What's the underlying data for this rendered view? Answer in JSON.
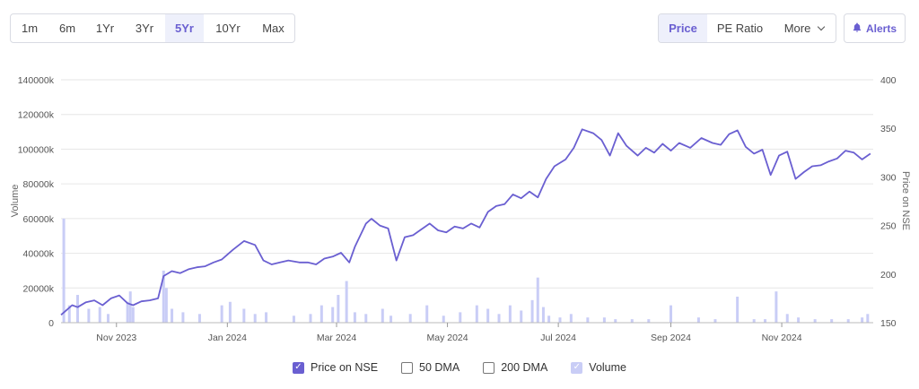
{
  "toolbar": {
    "ranges": [
      {
        "label": "1m",
        "active": false
      },
      {
        "label": "6m",
        "active": false
      },
      {
        "label": "1Yr",
        "active": false
      },
      {
        "label": "3Yr",
        "active": false
      },
      {
        "label": "5Yr",
        "active": true
      },
      {
        "label": "10Yr",
        "active": false
      },
      {
        "label": "Max",
        "active": false
      }
    ],
    "metrics": [
      {
        "label": "Price",
        "active": true
      },
      {
        "label": "PE Ratio",
        "active": false
      },
      {
        "label": "More",
        "active": false
      }
    ],
    "alerts_label": "Alerts",
    "alerts_icon": "bell-icon"
  },
  "colors": {
    "accent": "#6a5fd1",
    "volume": "#c9cdf6",
    "grid": "#e6e6e6"
  },
  "legend": [
    {
      "label": "Price on NSE",
      "checked": true,
      "style": "on"
    },
    {
      "label": "50 DMA",
      "checked": false,
      "style": "off"
    },
    {
      "label": "200 DMA",
      "checked": false,
      "style": "off"
    },
    {
      "label": "Volume",
      "checked": true,
      "style": "vol"
    }
  ],
  "chart_data": {
    "type": "line",
    "ylabel_left": "Volume",
    "ylabel_right": "Price on NSE",
    "left_ticks": [
      "0",
      "20000k",
      "40000k",
      "60000k",
      "80000k",
      "100000k",
      "120000k",
      "140000k"
    ],
    "right_ticks": [
      "150",
      "200",
      "250",
      "300",
      "350",
      "400"
    ],
    "left_ylim": [
      0,
      140000
    ],
    "right_ylim": [
      150,
      400
    ],
    "x_ticks": [
      {
        "label": "Nov 2023",
        "t": 1.0
      },
      {
        "label": "Jan 2024",
        "t": 3.0
      },
      {
        "label": "Mar 2024",
        "t": 4.97
      },
      {
        "label": "May 2024",
        "t": 6.97
      },
      {
        "label": "Jul 2024",
        "t": 8.97
      },
      {
        "label": "Sep 2024",
        "t": 11.0
      },
      {
        "label": "Nov 2024",
        "t": 13.0
      }
    ],
    "x_range": [
      0,
      14.65
    ],
    "price_series": {
      "name": "Price on NSE",
      "t": [
        0,
        0.1,
        0.2,
        0.3,
        0.45,
        0.6,
        0.75,
        0.9,
        1.05,
        1.2,
        1.3,
        1.45,
        1.6,
        1.75,
        1.85,
        2.0,
        2.15,
        2.3,
        2.45,
        2.6,
        2.75,
        2.9,
        3.1,
        3.3,
        3.5,
        3.65,
        3.8,
        3.95,
        4.1,
        4.3,
        4.45,
        4.6,
        4.75,
        4.9,
        5.05,
        5.2,
        5.3,
        5.4,
        5.5,
        5.6,
        5.75,
        5.9,
        6.05,
        6.2,
        6.35,
        6.5,
        6.65,
        6.8,
        6.95,
        7.1,
        7.25,
        7.4,
        7.55,
        7.7,
        7.85,
        8.0,
        8.15,
        8.3,
        8.45,
        8.6,
        8.75,
        8.9,
        9.1,
        9.25,
        9.4,
        9.6,
        9.75,
        9.9,
        10.05,
        10.2,
        10.4,
        10.55,
        10.7,
        10.85,
        11.0,
        11.15,
        11.35,
        11.55,
        11.75,
        11.9,
        12.05,
        12.2,
        12.35,
        12.5,
        12.65,
        12.8,
        12.95,
        13.1,
        13.25,
        13.4,
        13.55,
        13.7,
        13.85,
        14.0,
        14.15,
        14.3,
        14.45,
        14.6
      ],
      "price": [
        158,
        163,
        168,
        166,
        171,
        173,
        168,
        175,
        178,
        170,
        168,
        172,
        173,
        175,
        198,
        203,
        201,
        205,
        207,
        208,
        212,
        215,
        225,
        234,
        230,
        214,
        210,
        212,
        214,
        212,
        212,
        210,
        216,
        218,
        222,
        212,
        228,
        240,
        252,
        257,
        250,
        247,
        214,
        238,
        240,
        246,
        252,
        245,
        243,
        249,
        247,
        252,
        248,
        264,
        270,
        272,
        282,
        278,
        285,
        279,
        298,
        311,
        318,
        330,
        349,
        345,
        338,
        322,
        345,
        332,
        322,
        330,
        325,
        334,
        327,
        335,
        330,
        340,
        335,
        333,
        344,
        348,
        331,
        324,
        328,
        302,
        322,
        326,
        298,
        305,
        311,
        312,
        316,
        319,
        327,
        325,
        318,
        324
      ]
    },
    "volume_series": {
      "name": "Volume",
      "t": [
        0.05,
        0.15,
        0.3,
        0.5,
        0.7,
        0.85,
        1.2,
        1.25,
        1.3,
        1.85,
        1.9,
        2.0,
        2.2,
        2.5,
        2.9,
        3.05,
        3.3,
        3.5,
        3.7,
        4.2,
        4.5,
        4.7,
        4.9,
        5.0,
        5.15,
        5.3,
        5.5,
        5.8,
        5.95,
        6.3,
        6.6,
        6.9,
        7.2,
        7.5,
        7.7,
        7.9,
        8.1,
        8.3,
        8.5,
        8.6,
        8.7,
        8.8,
        9.0,
        9.2,
        9.5,
        9.8,
        10.0,
        10.3,
        10.6,
        11.0,
        11.5,
        11.8,
        12.2,
        12.5,
        12.7,
        12.9,
        13.1,
        13.3,
        13.6,
        13.9,
        14.2,
        14.45,
        14.55
      ],
      "volume": [
        60000,
        10000,
        16000,
        8000,
        9000,
        5000,
        12000,
        18000,
        9000,
        30000,
        20000,
        8000,
        6000,
        5000,
        10000,
        12000,
        8000,
        5000,
        6000,
        4000,
        5000,
        10000,
        9000,
        16000,
        24000,
        6000,
        5000,
        8000,
        4000,
        5000,
        10000,
        4000,
        6000,
        10000,
        8000,
        5000,
        10000,
        7000,
        13000,
        26000,
        9000,
        4000,
        3000,
        5000,
        3000,
        3000,
        2000,
        2000,
        2000,
        10000,
        3000,
        2000,
        15000,
        2000,
        2000,
        18000,
        5000,
        3000,
        2000,
        2000,
        2000,
        3000,
        5000
      ]
    }
  }
}
